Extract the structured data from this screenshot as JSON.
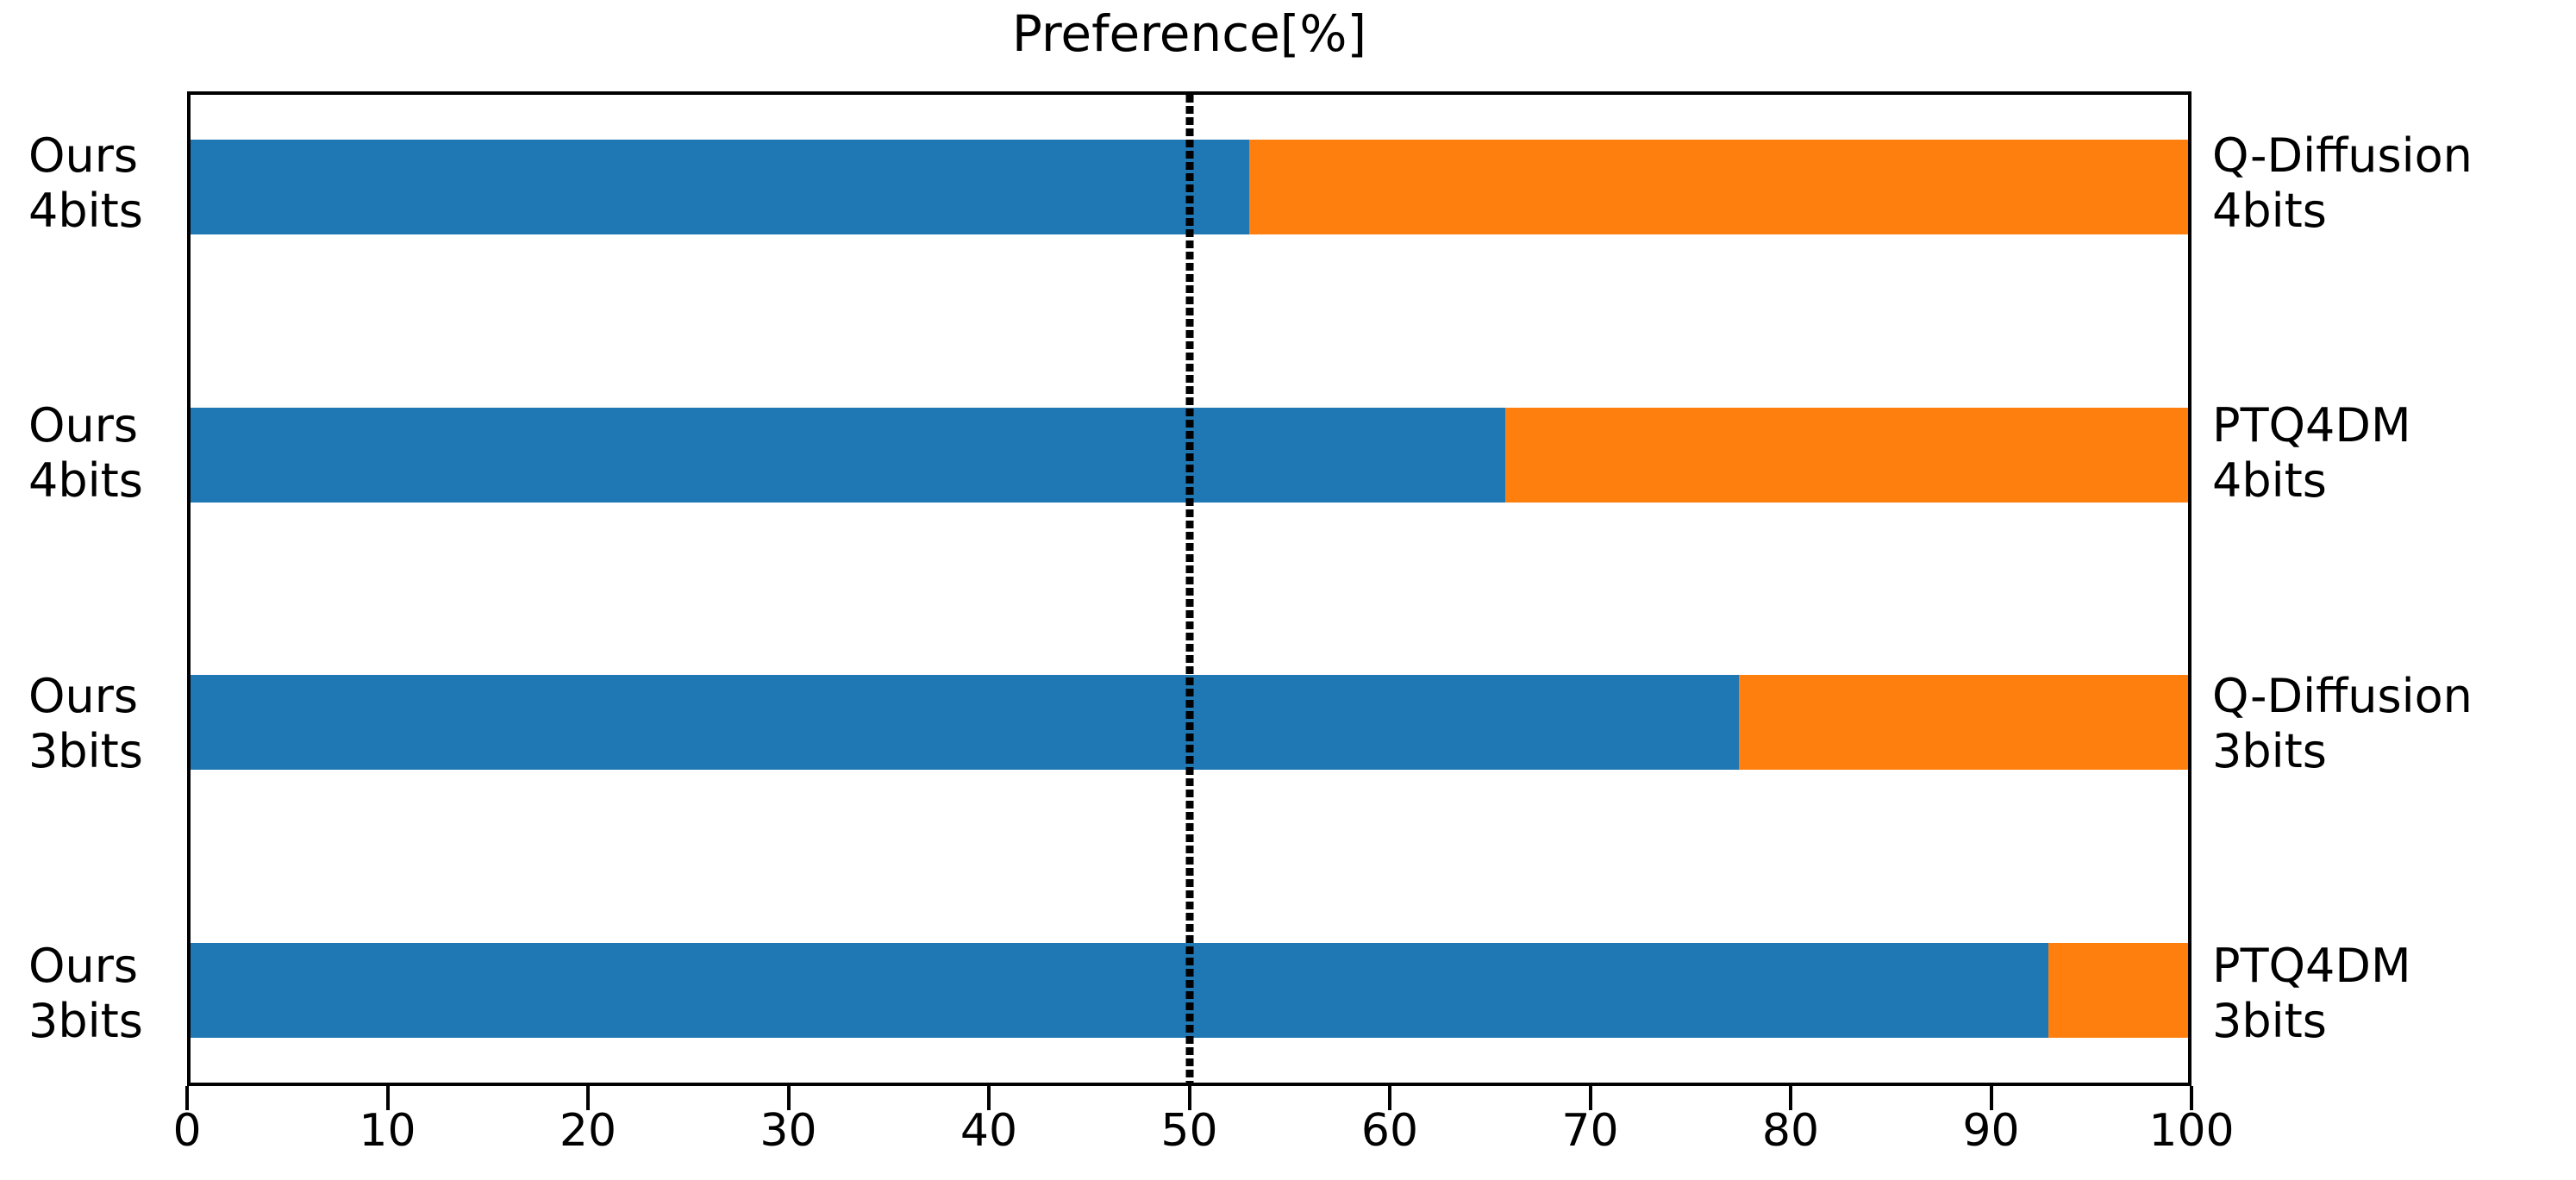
{
  "title": "Preference[%]",
  "colors": {
    "ours_bar": "#1f77b4",
    "baseline_bar": "#ff7f0e",
    "axis": "#000000",
    "background": "#ffffff"
  },
  "chart_data": {
    "type": "bar",
    "orientation": "horizontal",
    "stacked": true,
    "title": "Preference[%]",
    "xlabel": "",
    "ylabel": "",
    "xlim": [
      0,
      100
    ],
    "x_ticks": [
      "0",
      "10",
      "20",
      "30",
      "40",
      "50",
      "60",
      "70",
      "80",
      "90",
      "100"
    ],
    "reference_line_x": 50,
    "grid": false,
    "legend": "none",
    "rows": [
      {
        "left_label_lines": [
          "Ours",
          "4bits"
        ],
        "right_label_lines": [
          "Q-Diffusion",
          "4bits"
        ],
        "ours_pct": 53,
        "baseline_pct": 47
      },
      {
        "left_label_lines": [
          "Ours",
          "4bits"
        ],
        "right_label_lines": [
          "PTQ4DM",
          "4bits"
        ],
        "ours_pct": 65.8,
        "baseline_pct": 34.2
      },
      {
        "left_label_lines": [
          "Ours",
          "3bits"
        ],
        "right_label_lines": [
          "Q-Diffusion",
          "3bits"
        ],
        "ours_pct": 77.5,
        "baseline_pct": 22.5
      },
      {
        "left_label_lines": [
          "Ours",
          "3bits"
        ],
        "right_label_lines": [
          "PTQ4DM",
          "3bits"
        ],
        "ours_pct": 93,
        "baseline_pct": 7
      }
    ]
  }
}
